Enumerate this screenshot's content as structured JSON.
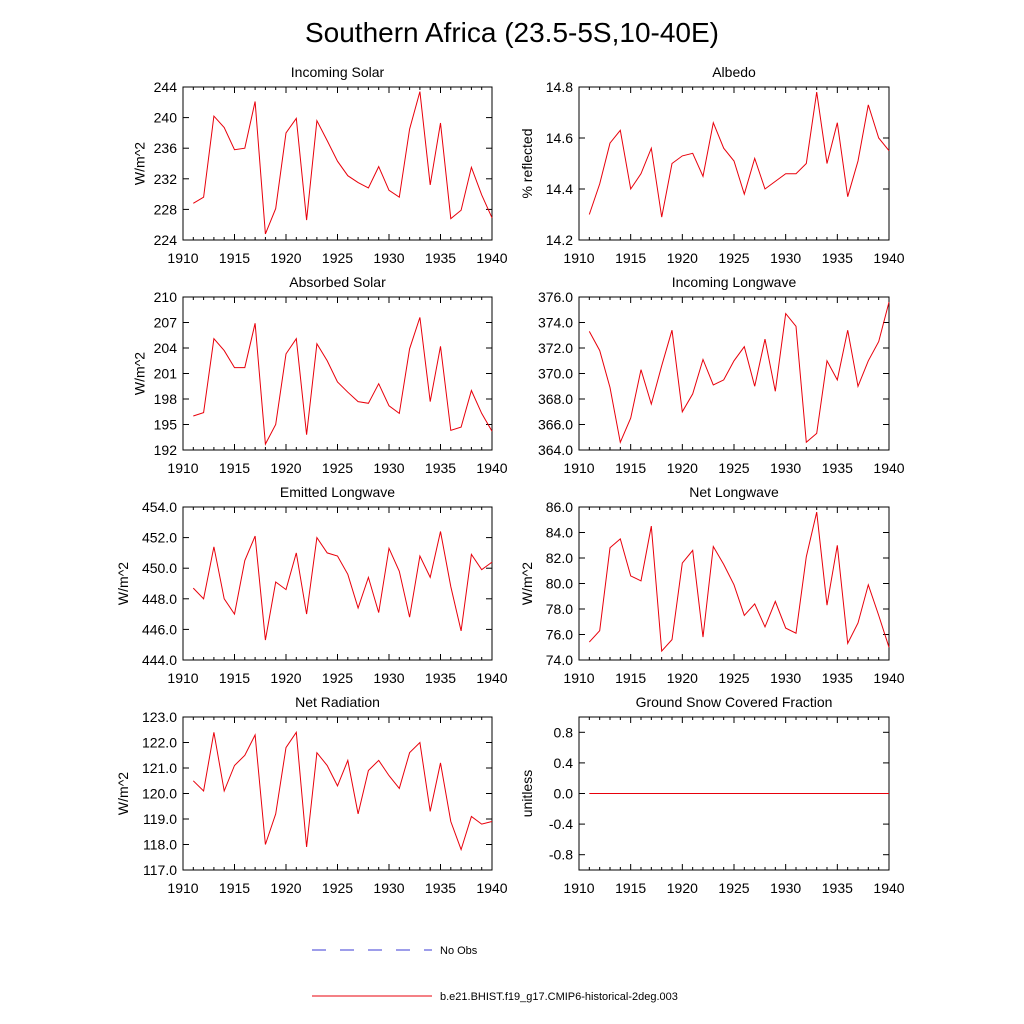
{
  "figure": {
    "title": "Southern Africa (23.5-5S,10-40E)"
  },
  "legend": {
    "items": [
      {
        "label": "No Obs",
        "color": "#3b3bd6",
        "style": "dashed"
      },
      {
        "label": "b.e21.BHIST.f19_g17.CMIP6-historical-2deg.003",
        "color": "#e8000b",
        "style": "solid"
      }
    ]
  },
  "chart_data": [
    {
      "type": "line",
      "title": "Incoming Solar",
      "xlabel": "",
      "ylabel": "W/m^2",
      "xlim": [
        1910,
        1940
      ],
      "ylim": [
        224,
        244
      ],
      "xticks": [
        1910,
        1915,
        1920,
        1925,
        1930,
        1935,
        1940
      ],
      "xtick_labels": [
        "1910",
        "1915",
        "1920",
        "1925",
        "1930",
        "1935",
        "1940"
      ],
      "yticks": [
        224,
        228,
        232,
        236,
        240,
        244
      ],
      "ytick_labels": [
        "224",
        "228",
        "232",
        "236",
        "240",
        "244"
      ],
      "grid": false,
      "series": [
        {
          "name": "b.e21.BHIST.f19_g17.CMIP6-historical-2deg.003",
          "color": "#e8000b",
          "x": [
            1911,
            1912,
            1913,
            1914,
            1915,
            1916,
            1917,
            1918,
            1919,
            1920,
            1921,
            1922,
            1923,
            1924,
            1925,
            1926,
            1927,
            1928,
            1929,
            1930,
            1931,
            1932,
            1933,
            1934,
            1935,
            1936,
            1937,
            1938,
            1939,
            1940
          ],
          "y": [
            228.8,
            229.6,
            240.2,
            238.7,
            235.8,
            236.0,
            242.1,
            224.8,
            228.1,
            238.0,
            239.9,
            226.6,
            239.6,
            237.0,
            234.3,
            232.4,
            231.5,
            230.8,
            233.6,
            230.5,
            229.6,
            238.5,
            243.4,
            231.2,
            239.3,
            226.8,
            227.9,
            233.5,
            229.9,
            226.9
          ]
        }
      ]
    },
    {
      "type": "line",
      "title": "Albedo",
      "xlabel": "",
      "ylabel": "% reflected",
      "xlim": [
        1910,
        1940
      ],
      "ylim": [
        14.2,
        14.8
      ],
      "xticks": [
        1910,
        1915,
        1920,
        1925,
        1930,
        1935,
        1940
      ],
      "xtick_labels": [
        "1910",
        "1915",
        "1920",
        "1925",
        "1930",
        "1935",
        "1940"
      ],
      "yticks": [
        14.2,
        14.4,
        14.6,
        14.8
      ],
      "ytick_labels": [
        "14.2",
        "14.4",
        "14.6",
        "14.8"
      ],
      "grid": false,
      "series": [
        {
          "name": "b.e21.BHIST.f19_g17.CMIP6-historical-2deg.003",
          "color": "#e8000b",
          "x": [
            1911,
            1912,
            1913,
            1914,
            1915,
            1916,
            1917,
            1918,
            1919,
            1920,
            1921,
            1922,
            1923,
            1924,
            1925,
            1926,
            1927,
            1928,
            1929,
            1930,
            1931,
            1932,
            1933,
            1934,
            1935,
            1936,
            1937,
            1938,
            1939,
            1940
          ],
          "y": [
            14.3,
            14.42,
            14.58,
            14.63,
            14.4,
            14.46,
            14.56,
            14.29,
            14.5,
            14.53,
            14.54,
            14.45,
            14.66,
            14.56,
            14.51,
            14.38,
            14.52,
            14.4,
            14.43,
            14.46,
            14.46,
            14.5,
            14.78,
            14.5,
            14.66,
            14.37,
            14.51,
            14.73,
            14.6,
            14.55
          ]
        }
      ]
    },
    {
      "type": "line",
      "title": "Absorbed Solar",
      "xlabel": "",
      "ylabel": "W/m^2",
      "xlim": [
        1910,
        1940
      ],
      "ylim": [
        192,
        210
      ],
      "xticks": [
        1910,
        1915,
        1920,
        1925,
        1930,
        1935,
        1940
      ],
      "xtick_labels": [
        "1910",
        "1915",
        "1920",
        "1925",
        "1930",
        "1935",
        "1940"
      ],
      "yticks": [
        192,
        195,
        198,
        201,
        204,
        207,
        210
      ],
      "ytick_labels": [
        "192",
        "195",
        "198",
        "201",
        "204",
        "207",
        "210"
      ],
      "grid": false,
      "series": [
        {
          "name": "b.e21.BHIST.f19_g17.CMIP6-historical-2deg.003",
          "color": "#e8000b",
          "x": [
            1911,
            1912,
            1913,
            1914,
            1915,
            1916,
            1917,
            1918,
            1919,
            1920,
            1921,
            1922,
            1923,
            1924,
            1925,
            1926,
            1927,
            1928,
            1929,
            1930,
            1931,
            1932,
            1933,
            1934,
            1935,
            1936,
            1937,
            1938,
            1939,
            1940
          ],
          "y": [
            196.0,
            196.4,
            205.1,
            203.7,
            201.7,
            201.7,
            206.9,
            192.7,
            195.0,
            203.3,
            205.1,
            193.8,
            204.5,
            202.5,
            200.0,
            198.8,
            197.7,
            197.5,
            199.8,
            197.2,
            196.3,
            203.9,
            207.6,
            197.7,
            204.2,
            194.3,
            194.7,
            199.0,
            196.3,
            194.2
          ]
        }
      ]
    },
    {
      "type": "line",
      "title": "Incoming Longwave",
      "xlabel": "",
      "ylabel": "",
      "xlim": [
        1910,
        1940
      ],
      "ylim": [
        364.0,
        376.0
      ],
      "xticks": [
        1910,
        1915,
        1920,
        1925,
        1930,
        1935,
        1940
      ],
      "xtick_labels": [
        "1910",
        "1915",
        "1920",
        "1925",
        "1930",
        "1935",
        "1940"
      ],
      "yticks": [
        364.0,
        366.0,
        368.0,
        370.0,
        372.0,
        374.0,
        376.0
      ],
      "ytick_labels": [
        "364.0",
        "366.0",
        "368.0",
        "370.0",
        "372.0",
        "374.0",
        "376.0"
      ],
      "grid": false,
      "series": [
        {
          "name": "b.e21.BHIST.f19_g17.CMIP6-historical-2deg.003",
          "color": "#e8000b",
          "x": [
            1911,
            1912,
            1913,
            1914,
            1915,
            1916,
            1917,
            1918,
            1919,
            1920,
            1921,
            1922,
            1923,
            1924,
            1925,
            1926,
            1927,
            1928,
            1929,
            1930,
            1931,
            1932,
            1933,
            1934,
            1935,
            1936,
            1937,
            1938,
            1939,
            1940
          ],
          "y": [
            373.3,
            371.8,
            368.9,
            364.6,
            366.5,
            370.3,
            367.6,
            370.6,
            373.4,
            367.0,
            368.4,
            371.1,
            369.1,
            369.5,
            371.0,
            372.1,
            369.0,
            372.7,
            368.6,
            374.7,
            373.7,
            364.6,
            365.3,
            371.0,
            369.5,
            373.4,
            369.0,
            371.0,
            372.5,
            375.6
          ]
        }
      ]
    },
    {
      "type": "line",
      "title": "Emitted Longwave",
      "xlabel": "",
      "ylabel": "W/m^2",
      "xlim": [
        1910,
        1940
      ],
      "ylim": [
        444.0,
        454.0
      ],
      "xticks": [
        1910,
        1915,
        1920,
        1925,
        1930,
        1935,
        1940
      ],
      "xtick_labels": [
        "1910",
        "1915",
        "1920",
        "1925",
        "1930",
        "1935",
        "1940"
      ],
      "yticks": [
        444.0,
        446.0,
        448.0,
        450.0,
        452.0,
        454.0
      ],
      "ytick_labels": [
        "444.0",
        "446.0",
        "448.0",
        "450.0",
        "452.0",
        "454.0"
      ],
      "grid": false,
      "series": [
        {
          "name": "b.e21.BHIST.f19_g17.CMIP6-historical-2deg.003",
          "color": "#e8000b",
          "x": [
            1911,
            1912,
            1913,
            1914,
            1915,
            1916,
            1917,
            1918,
            1919,
            1920,
            1921,
            1922,
            1923,
            1924,
            1925,
            1926,
            1927,
            1928,
            1929,
            1930,
            1931,
            1932,
            1933,
            1934,
            1935,
            1936,
            1937,
            1938,
            1939,
            1940
          ],
          "y": [
            448.7,
            448.0,
            451.4,
            448.0,
            447.0,
            450.5,
            452.1,
            445.3,
            449.1,
            448.6,
            451.0,
            447.0,
            452.0,
            451.0,
            450.8,
            449.6,
            447.4,
            449.4,
            447.1,
            451.3,
            449.8,
            446.8,
            450.8,
            449.4,
            452.4,
            448.8,
            445.9,
            450.9,
            449.9,
            450.4
          ]
        }
      ]
    },
    {
      "type": "line",
      "title": "Net Longwave",
      "xlabel": "",
      "ylabel": "W/m^2",
      "xlim": [
        1910,
        1940
      ],
      "ylim": [
        74.0,
        86.0
      ],
      "xticks": [
        1910,
        1915,
        1920,
        1925,
        1930,
        1935,
        1940
      ],
      "xtick_labels": [
        "1910",
        "1915",
        "1920",
        "1925",
        "1930",
        "1935",
        "1940"
      ],
      "yticks": [
        74.0,
        76.0,
        78.0,
        80.0,
        82.0,
        84.0,
        86.0
      ],
      "ytick_labels": [
        "74.0",
        "76.0",
        "78.0",
        "80.0",
        "82.0",
        "84.0",
        "86.0"
      ],
      "grid": false,
      "series": [
        {
          "name": "b.e21.BHIST.f19_g17.CMIP6-historical-2deg.003",
          "color": "#e8000b",
          "x": [
            1911,
            1912,
            1913,
            1914,
            1915,
            1916,
            1917,
            1918,
            1919,
            1920,
            1921,
            1922,
            1923,
            1924,
            1925,
            1926,
            1927,
            1928,
            1929,
            1930,
            1931,
            1932,
            1933,
            1934,
            1935,
            1936,
            1937,
            1938,
            1939,
            1940
          ],
          "y": [
            75.4,
            76.3,
            82.8,
            83.5,
            80.6,
            80.2,
            84.5,
            74.7,
            75.6,
            81.6,
            82.6,
            75.8,
            82.9,
            81.5,
            79.9,
            77.5,
            78.4,
            76.6,
            78.6,
            76.5,
            76.1,
            82.1,
            85.6,
            78.3,
            83.0,
            75.3,
            76.9,
            79.9,
            77.5,
            75.0
          ]
        }
      ]
    },
    {
      "type": "line",
      "title": "Net Radiation",
      "xlabel": "",
      "ylabel": "W/m^2",
      "xlim": [
        1910,
        1940
      ],
      "ylim": [
        117.0,
        123.0
      ],
      "xticks": [
        1910,
        1915,
        1920,
        1925,
        1930,
        1935,
        1940
      ],
      "xtick_labels": [
        "1910",
        "1915",
        "1920",
        "1925",
        "1930",
        "1935",
        "1940"
      ],
      "yticks": [
        117.0,
        118.0,
        119.0,
        120.0,
        121.0,
        122.0,
        123.0
      ],
      "ytick_labels": [
        "117.0",
        "118.0",
        "119.0",
        "120.0",
        "121.0",
        "122.0",
        "123.0"
      ],
      "grid": false,
      "series": [
        {
          "name": "b.e21.BHIST.f19_g17.CMIP6-historical-2deg.003",
          "color": "#e8000b",
          "x": [
            1911,
            1912,
            1913,
            1914,
            1915,
            1916,
            1917,
            1918,
            1919,
            1920,
            1921,
            1922,
            1923,
            1924,
            1925,
            1926,
            1927,
            1928,
            1929,
            1930,
            1931,
            1932,
            1933,
            1934,
            1935,
            1936,
            1937,
            1938,
            1939,
            1940
          ],
          "y": [
            120.5,
            120.1,
            122.4,
            120.1,
            121.1,
            121.5,
            122.3,
            118.0,
            119.2,
            121.8,
            122.4,
            117.9,
            121.6,
            121.1,
            120.3,
            121.3,
            119.2,
            120.9,
            121.3,
            120.7,
            120.2,
            121.6,
            122.0,
            119.3,
            121.2,
            118.9,
            117.8,
            119.1,
            118.8,
            118.9
          ]
        }
      ]
    },
    {
      "type": "line",
      "title": "Ground Snow Covered Fraction",
      "xlabel": "",
      "ylabel": "unitless",
      "xlim": [
        1910,
        1940
      ],
      "ylim": [
        -1.0,
        1.0
      ],
      "xticks": [
        1910,
        1915,
        1920,
        1925,
        1930,
        1935,
        1940
      ],
      "xtick_labels": [
        "1910",
        "1915",
        "1920",
        "1925",
        "1930",
        "1935",
        "1940"
      ],
      "yticks": [
        -0.8,
        -0.4,
        0.0,
        0.4,
        0.8
      ],
      "ytick_labels": [
        "-0.8",
        "-0.4",
        "0.0",
        "0.4",
        "0.8"
      ],
      "grid": false,
      "series": [
        {
          "name": "b.e21.BHIST.f19_g17.CMIP6-historical-2deg.003",
          "color": "#e8000b",
          "x": [
            1911,
            1912,
            1913,
            1914,
            1915,
            1916,
            1917,
            1918,
            1919,
            1920,
            1921,
            1922,
            1923,
            1924,
            1925,
            1926,
            1927,
            1928,
            1929,
            1930,
            1931,
            1932,
            1933,
            1934,
            1935,
            1936,
            1937,
            1938,
            1939,
            1940
          ],
          "y": [
            0,
            0,
            0,
            0,
            0,
            0,
            0,
            0,
            0,
            0,
            0,
            0,
            0,
            0,
            0,
            0,
            0,
            0,
            0,
            0,
            0,
            0,
            0,
            0,
            0,
            0,
            0,
            0,
            0,
            0
          ]
        }
      ]
    }
  ]
}
